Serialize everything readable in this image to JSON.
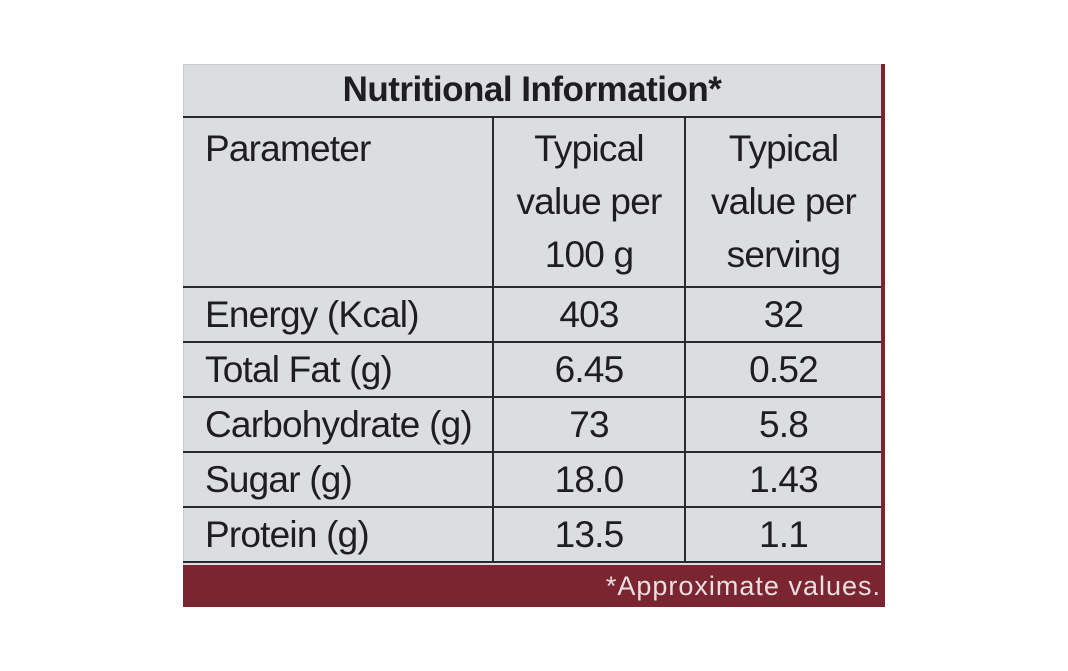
{
  "label": {
    "title": "Nutritional Information*",
    "columns": {
      "parameter": "Parameter",
      "per_100g": [
        "Typical",
        "value per",
        "100 g"
      ],
      "per_serving": [
        "Typical",
        "value per",
        "serving"
      ]
    },
    "rows": [
      {
        "parameter": "Energy (Kcal)",
        "per_100g": "403",
        "per_serving": "32"
      },
      {
        "parameter": "Total Fat (g)",
        "per_100g": "6.45",
        "per_serving": "0.52"
      },
      {
        "parameter": "Carbohydrate (g)",
        "per_100g": "73",
        "per_serving": "5.8"
      },
      {
        "parameter": "Sugar (g)",
        "per_100g": "18.0",
        "per_serving": "1.43"
      },
      {
        "parameter": "Protein (g)",
        "per_100g": "13.5",
        "per_serving": "1.1"
      }
    ],
    "footnote": "*Approximate values."
  },
  "colors": {
    "card_background": "#dcdde0",
    "text": "#1e1e22",
    "footer_band": "#7a2530"
  }
}
